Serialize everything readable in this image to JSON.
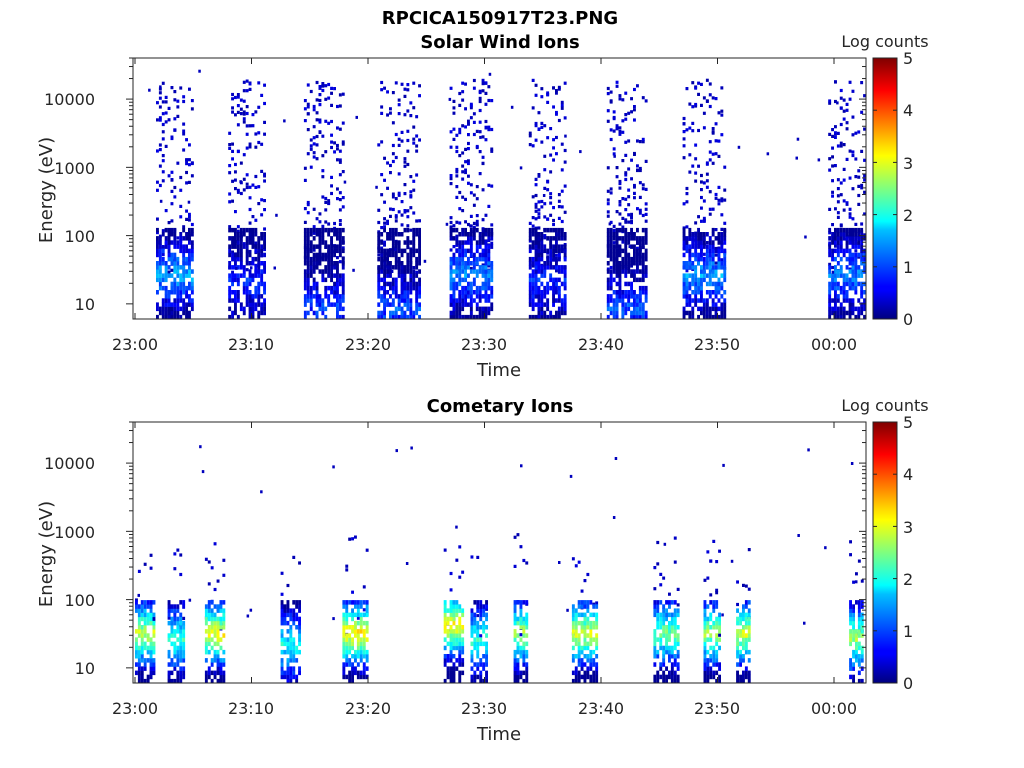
{
  "figure": {
    "title": "RPCICA150917T23.PNG"
  },
  "colorbar": {
    "label": "Log counts",
    "ticks": [
      "0",
      "1",
      "2",
      "3",
      "4",
      "5"
    ]
  },
  "panels": [
    {
      "title": "Solar Wind Ions",
      "ylabel": "Energy (eV)",
      "xlabel": "Time",
      "yticks": [
        "10",
        "100",
        "1000",
        "10000"
      ],
      "xticks": [
        "23:00",
        "23:10",
        "23:20",
        "23:30",
        "23:40",
        "23:50",
        "00:00"
      ]
    },
    {
      "title": "Cometary Ions",
      "ylabel": "Energy (eV)",
      "xlabel": "Time",
      "yticks": [
        "10",
        "100",
        "1000",
        "10000"
      ],
      "xticks": [
        "23:00",
        "23:10",
        "23:20",
        "23:30",
        "23:40",
        "23:50",
        "00:00"
      ]
    }
  ],
  "chart_data": [
    {
      "type": "heatmap",
      "title": "Solar Wind Ions",
      "xlabel": "Time",
      "ylabel": "Energy (eV)",
      "x_range_minutes": [
        0,
        63
      ],
      "ylim": [
        6,
        40000
      ],
      "y_scale": "log",
      "color_range": [
        0,
        5
      ],
      "colorbar_label": "Log counts",
      "colormap": "jet",
      "bursts": [
        {
          "start_min": 1.8,
          "end_min": 5.0,
          "energy_min": 6,
          "energy_max": 20000,
          "peak_log_counts": 1.5,
          "peak_energy": 25
        },
        {
          "start_min": 8.0,
          "end_min": 11.2,
          "energy_min": 6,
          "energy_max": 20000,
          "peak_log_counts": 0.8,
          "peak_energy": 20
        },
        {
          "start_min": 14.5,
          "end_min": 17.8,
          "energy_min": 6,
          "energy_max": 20000,
          "peak_log_counts": 0.9,
          "peak_energy": 8
        },
        {
          "start_min": 20.8,
          "end_min": 24.5,
          "energy_min": 6,
          "energy_max": 20000,
          "peak_log_counts": 1.0,
          "peak_energy": 8
        },
        {
          "start_min": 27.0,
          "end_min": 30.5,
          "energy_min": 6,
          "energy_max": 20000,
          "peak_log_counts": 1.3,
          "peak_energy": 25
        },
        {
          "start_min": 33.8,
          "end_min": 37.0,
          "energy_min": 6,
          "energy_max": 20000,
          "peak_log_counts": 0.8,
          "peak_energy": 20
        },
        {
          "start_min": 40.5,
          "end_min": 43.8,
          "energy_min": 6,
          "energy_max": 20000,
          "peak_log_counts": 1.0,
          "peak_energy": 8
        },
        {
          "start_min": 47.0,
          "end_min": 50.5,
          "energy_min": 6,
          "energy_max": 20000,
          "peak_log_counts": 1.4,
          "peak_energy": 25
        },
        {
          "start_min": 59.5,
          "end_min": 62.5,
          "energy_min": 6,
          "energy_max": 20000,
          "peak_log_counts": 1.3,
          "peak_energy": 25
        }
      ],
      "data_gap_minutes": [
        54.5,
        56.5
      ]
    },
    {
      "type": "heatmap",
      "title": "Cometary Ions",
      "xlabel": "Time",
      "ylabel": "Energy (eV)",
      "x_range_minutes": [
        0,
        63
      ],
      "ylim": [
        6,
        40000
      ],
      "y_scale": "log",
      "color_range": [
        0,
        5
      ],
      "colorbar_label": "Log counts",
      "colormap": "jet",
      "bursts": [
        {
          "start_min": 0.0,
          "end_min": 1.5,
          "energy_min": 6,
          "energy_max": 800,
          "peak_log_counts": 2.9,
          "peak_energy": 30
        },
        {
          "start_min": 2.8,
          "end_min": 4.2,
          "energy_min": 6,
          "energy_max": 600,
          "peak_log_counts": 2.2,
          "peak_energy": 25
        },
        {
          "start_min": 6.0,
          "end_min": 7.5,
          "energy_min": 6,
          "energy_max": 1000,
          "peak_log_counts": 3.2,
          "peak_energy": 30
        },
        {
          "start_min": 12.5,
          "end_min": 14.0,
          "energy_min": 6,
          "energy_max": 1000,
          "peak_log_counts": 2.0,
          "peak_energy": 20
        },
        {
          "start_min": 17.8,
          "end_min": 20.0,
          "energy_min": 6,
          "energy_max": 1000,
          "peak_log_counts": 3.3,
          "peak_energy": 30
        },
        {
          "start_min": 26.5,
          "end_min": 28.0,
          "energy_min": 6,
          "energy_max": 1000,
          "peak_log_counts": 3.3,
          "peak_energy": 40
        },
        {
          "start_min": 28.8,
          "end_min": 30.2,
          "energy_min": 6,
          "energy_max": 1000,
          "peak_log_counts": 2.2,
          "peak_energy": 25
        },
        {
          "start_min": 32.5,
          "end_min": 33.6,
          "energy_min": 6,
          "energy_max": 1000,
          "peak_log_counts": 2.8,
          "peak_energy": 30
        },
        {
          "start_min": 37.5,
          "end_min": 39.5,
          "energy_min": 6,
          "energy_max": 1000,
          "peak_log_counts": 3.0,
          "peak_energy": 30
        },
        {
          "start_min": 44.5,
          "end_min": 46.5,
          "energy_min": 6,
          "energy_max": 1000,
          "peak_log_counts": 2.5,
          "peak_energy": 30
        },
        {
          "start_min": 48.8,
          "end_min": 50.2,
          "energy_min": 6,
          "energy_max": 1000,
          "peak_log_counts": 2.7,
          "peak_energy": 30
        },
        {
          "start_min": 51.6,
          "end_min": 52.8,
          "energy_min": 6,
          "energy_max": 1000,
          "peak_log_counts": 3.0,
          "peak_energy": 30
        },
        {
          "start_min": 61.3,
          "end_min": 62.4,
          "energy_min": 6,
          "energy_max": 1000,
          "peak_log_counts": 2.7,
          "peak_energy": 25
        }
      ],
      "data_gap_minutes": [
        54.5,
        56.5
      ]
    }
  ]
}
